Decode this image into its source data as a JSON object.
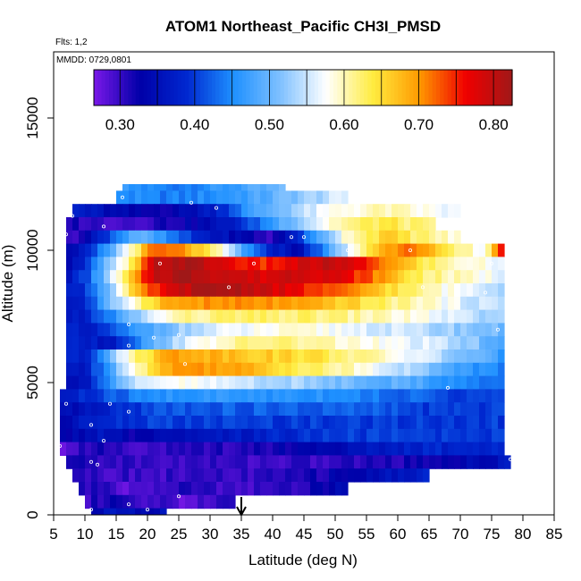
{
  "chart_data": {
    "type": "heatmap",
    "title": "ATOM1 Northeast_Pacific CH3I_PMSD",
    "subtitle_flights": "Flts: 1,2",
    "subtitle_dates": "MMDD: 0729,0801",
    "xlabel": "Latitude (deg N)",
    "ylabel": "Altitude (m)",
    "xlim": [
      5,
      85
    ],
    "ylim": [
      0,
      17500
    ],
    "xticks": [
      "5",
      "10",
      "15",
      "20",
      "25",
      "30",
      "35",
      "40",
      "45",
      "50",
      "55",
      "60",
      "65",
      "70",
      "75",
      "80",
      "85"
    ],
    "yticks": [
      "0",
      "5000",
      "10000",
      "15000"
    ],
    "colorbar": {
      "range": [
        0.265,
        0.825
      ],
      "ticks": [
        "0.30",
        "0.40",
        "0.50",
        "0.60",
        "0.70",
        "0.80"
      ],
      "tick_values": [
        0.3,
        0.4,
        0.5,
        0.6,
        0.7,
        0.8
      ],
      "stops": [
        "#7a18e8",
        "#0000a8",
        "#0028d0",
        "#1e90ff",
        "#7ec0ff",
        "#ffffff",
        "#ffec40",
        "#ff9a00",
        "#f00000",
        "#a01818"
      ]
    },
    "marker_latitude": 35,
    "bands": [
      {
        "alt": [
          12250,
          12500
        ],
        "lat": [
          16,
          24,
          31,
          37,
          42
        ],
        "val": [
          0.46,
          0.44,
          0.46,
          0.48,
          0.5
        ]
      },
      {
        "alt": [
          11750,
          12250
        ],
        "lat": [
          15,
          20,
          26,
          32,
          38,
          44,
          52
        ],
        "val": [
          0.46,
          0.44,
          0.44,
          0.46,
          0.48,
          0.52,
          0.56
        ]
      },
      {
        "alt": [
          11250,
          11750
        ],
        "lat": [
          8,
          14,
          20,
          26,
          31,
          36,
          42,
          50,
          58,
          70
        ],
        "val": [
          0.38,
          0.34,
          0.32,
          0.34,
          0.38,
          0.46,
          0.52,
          0.58,
          0.6,
          0.56
        ]
      },
      {
        "alt": [
          10750,
          11250
        ],
        "lat": [
          7,
          12,
          18,
          24,
          30,
          36,
          42,
          50,
          58,
          66
        ],
        "val": [
          0.32,
          0.3,
          0.3,
          0.32,
          0.34,
          0.4,
          0.5,
          0.6,
          0.64,
          0.6
        ]
      },
      {
        "alt": [
          10250,
          10750
        ],
        "lat": [
          7,
          10,
          14,
          18,
          22,
          28,
          34,
          40,
          46,
          52,
          58,
          64,
          70
        ],
        "val": [
          0.3,
          0.32,
          0.42,
          0.5,
          0.46,
          0.38,
          0.34,
          0.3,
          0.44,
          0.6,
          0.66,
          0.62,
          0.58
        ]
      },
      {
        "alt": [
          9750,
          10250
        ],
        "lat": [
          7,
          10,
          14,
          18,
          21,
          26,
          32,
          38,
          44,
          50,
          56,
          62,
          68,
          74,
          77
        ],
        "val": [
          0.32,
          0.36,
          0.48,
          0.62,
          0.72,
          0.7,
          0.58,
          0.4,
          0.34,
          0.5,
          0.66,
          0.74,
          0.62,
          0.58,
          0.8
        ]
      },
      {
        "alt": [
          9250,
          9750
        ],
        "lat": [
          7,
          10,
          14,
          18,
          21,
          26,
          32,
          38,
          44,
          50,
          56,
          62,
          68,
          74,
          77
        ],
        "val": [
          0.34,
          0.38,
          0.52,
          0.64,
          0.8,
          0.82,
          0.78,
          0.74,
          0.78,
          0.8,
          0.74,
          0.66,
          0.6,
          0.58,
          0.56
        ]
      },
      {
        "alt": [
          8750,
          9250
        ],
        "lat": [
          7,
          10,
          14,
          18,
          21,
          26,
          32,
          38,
          44,
          50,
          56,
          62,
          68,
          74,
          77
        ],
        "val": [
          0.36,
          0.4,
          0.54,
          0.68,
          0.8,
          0.82,
          0.8,
          0.78,
          0.8,
          0.78,
          0.72,
          0.64,
          0.6,
          0.58,
          0.56
        ]
      },
      {
        "alt": [
          8250,
          8750
        ],
        "lat": [
          7,
          10,
          14,
          18,
          21,
          26,
          32,
          38,
          44,
          50,
          56,
          62,
          68,
          74,
          77
        ],
        "val": [
          0.36,
          0.4,
          0.52,
          0.66,
          0.74,
          0.8,
          0.82,
          0.8,
          0.76,
          0.72,
          0.68,
          0.62,
          0.58,
          0.56,
          0.54
        ]
      },
      {
        "alt": [
          7750,
          8250
        ],
        "lat": [
          7,
          10,
          14,
          18,
          22,
          28,
          34,
          40,
          46,
          52,
          58,
          64,
          70,
          77
        ],
        "val": [
          0.36,
          0.38,
          0.5,
          0.6,
          0.68,
          0.7,
          0.7,
          0.7,
          0.68,
          0.66,
          0.62,
          0.6,
          0.56,
          0.54
        ]
      },
      {
        "alt": [
          7250,
          7750
        ],
        "lat": [
          7,
          10,
          14,
          18,
          24,
          32,
          40,
          48,
          56,
          64,
          72,
          77
        ],
        "val": [
          0.36,
          0.38,
          0.44,
          0.52,
          0.6,
          0.62,
          0.62,
          0.62,
          0.6,
          0.58,
          0.54,
          0.52
        ]
      },
      {
        "alt": [
          6750,
          7250
        ],
        "lat": [
          7,
          10,
          14,
          18,
          24,
          32,
          40,
          48,
          56,
          64,
          72,
          77
        ],
        "val": [
          0.38,
          0.36,
          0.4,
          0.46,
          0.52,
          0.56,
          0.58,
          0.58,
          0.56,
          0.54,
          0.52,
          0.5
        ]
      },
      {
        "alt": [
          6250,
          6750
        ],
        "lat": [
          7,
          10,
          14,
          18,
          24,
          32,
          40,
          48,
          56,
          64,
          72,
          77
        ],
        "val": [
          0.4,
          0.38,
          0.36,
          0.44,
          0.54,
          0.6,
          0.62,
          0.6,
          0.58,
          0.56,
          0.52,
          0.48
        ]
      },
      {
        "alt": [
          5750,
          6250
        ],
        "lat": [
          7,
          10,
          14,
          18,
          24,
          32,
          40,
          48,
          56,
          64,
          72,
          77
        ],
        "val": [
          0.4,
          0.38,
          0.5,
          0.62,
          0.7,
          0.68,
          0.66,
          0.64,
          0.6,
          0.56,
          0.5,
          0.46
        ]
      },
      {
        "alt": [
          5250,
          5750
        ],
        "lat": [
          7,
          10,
          14,
          18,
          24,
          32,
          40,
          48,
          56,
          64,
          72,
          77
        ],
        "val": [
          0.38,
          0.36,
          0.48,
          0.6,
          0.7,
          0.7,
          0.66,
          0.62,
          0.58,
          0.52,
          0.46,
          0.44
        ]
      },
      {
        "alt": [
          4750,
          5250
        ],
        "lat": [
          7,
          10,
          14,
          18,
          24,
          32,
          40,
          48,
          56,
          64,
          72,
          77
        ],
        "val": [
          0.36,
          0.36,
          0.46,
          0.54,
          0.58,
          0.56,
          0.54,
          0.52,
          0.5,
          0.48,
          0.44,
          0.42
        ]
      },
      {
        "alt": [
          4250,
          4750
        ],
        "lat": [
          6,
          12,
          18,
          24,
          32,
          40,
          48,
          56,
          64,
          72,
          77
        ],
        "val": [
          0.36,
          0.4,
          0.44,
          0.46,
          0.46,
          0.46,
          0.46,
          0.44,
          0.42,
          0.4,
          0.4
        ]
      },
      {
        "alt": [
          3750,
          4250
        ],
        "lat": [
          6,
          12,
          18,
          24,
          32,
          40,
          48,
          56,
          64,
          72,
          77
        ],
        "val": [
          0.34,
          0.36,
          0.4,
          0.42,
          0.42,
          0.42,
          0.42,
          0.42,
          0.4,
          0.4,
          0.4
        ]
      },
      {
        "alt": [
          3250,
          3750
        ],
        "lat": [
          6,
          12,
          18,
          24,
          32,
          40,
          48,
          56,
          64,
          72,
          77
        ],
        "val": [
          0.34,
          0.38,
          0.4,
          0.4,
          0.4,
          0.4,
          0.4,
          0.4,
          0.4,
          0.4,
          0.4
        ]
      },
      {
        "alt": [
          2750,
          3250
        ],
        "lat": [
          6,
          12,
          18,
          24,
          32,
          40,
          48,
          56,
          64,
          72,
          77
        ],
        "val": [
          0.32,
          0.36,
          0.32,
          0.34,
          0.36,
          0.38,
          0.4,
          0.4,
          0.4,
          0.4,
          0.4
        ]
      },
      {
        "alt": [
          2250,
          2750
        ],
        "lat": [
          6,
          12,
          18,
          24,
          32,
          40,
          48,
          56,
          64,
          72,
          77
        ],
        "val": [
          0.28,
          0.32,
          0.3,
          0.3,
          0.31,
          0.32,
          0.34,
          0.36,
          0.38,
          0.38,
          0.38
        ]
      },
      {
        "alt": [
          1750,
          2250
        ],
        "lat": [
          7,
          12,
          18,
          24,
          32,
          40,
          48,
          56,
          64,
          72,
          78
        ],
        "val": [
          0.32,
          0.31,
          0.3,
          0.3,
          0.3,
          0.3,
          0.3,
          0.31,
          0.32,
          0.34,
          0.36
        ]
      },
      {
        "alt": [
          1250,
          1750
        ],
        "lat": [
          8,
          12,
          18,
          24,
          32,
          40,
          48,
          55,
          60,
          65
        ],
        "val": [
          0.32,
          0.3,
          0.3,
          0.3,
          0.3,
          0.3,
          0.32,
          0.34,
          0.36,
          0.38
        ]
      },
      {
        "alt": [
          750,
          1250
        ],
        "lat": [
          9,
          13,
          18,
          22,
          26,
          30,
          36,
          42,
          47,
          52
        ],
        "val": [
          0.32,
          0.3,
          0.28,
          0.3,
          0.31,
          0.3,
          0.3,
          0.3,
          0.32,
          0.36
        ]
      },
      {
        "alt": [
          250,
          750
        ],
        "lat": [
          10,
          14,
          18,
          22,
          26,
          30,
          34
        ],
        "val": [
          0.3,
          0.32,
          0.29,
          0.3,
          0.28,
          0.3,
          0.32
        ]
      },
      {
        "alt": [
          0,
          250
        ],
        "lat": [
          11,
          15,
          19,
          23
        ],
        "val": [
          0.34,
          0.36,
          0.34,
          0.35
        ]
      }
    ],
    "points": [
      [
        16,
        12000
      ],
      [
        27,
        11800
      ],
      [
        31,
        11600
      ],
      [
        8,
        11300
      ],
      [
        13,
        10900
      ],
      [
        7,
        10600
      ],
      [
        43,
        10500
      ],
      [
        45,
        10500
      ],
      [
        52,
        10000
      ],
      [
        62,
        10000
      ],
      [
        22,
        9500
      ],
      [
        37,
        9500
      ],
      [
        75,
        9500
      ],
      [
        33,
        8600
      ],
      [
        64,
        8600
      ],
      [
        74,
        8400
      ],
      [
        17,
        7200
      ],
      [
        76,
        7000
      ],
      [
        21,
        6700
      ],
      [
        25,
        6800
      ],
      [
        17,
        6400
      ],
      [
        26,
        5700
      ],
      [
        68,
        4800
      ],
      [
        7,
        4200
      ],
      [
        14,
        4200
      ],
      [
        17,
        3900
      ],
      [
        11,
        3400
      ],
      [
        6,
        2600
      ],
      [
        13,
        2800
      ],
      [
        11,
        2000
      ],
      [
        78,
        2100
      ],
      [
        12,
        1900
      ],
      [
        25,
        700
      ],
      [
        17,
        400
      ],
      [
        20,
        200
      ],
      [
        11,
        200
      ]
    ]
  }
}
